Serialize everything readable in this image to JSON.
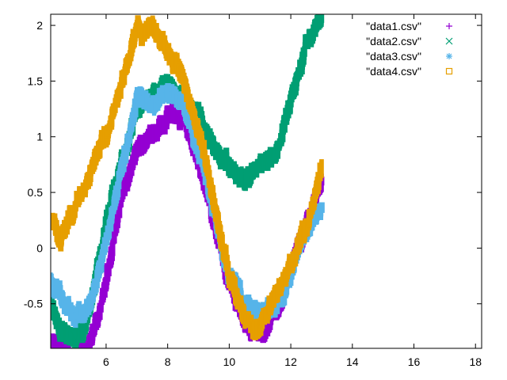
{
  "chart_data": {
    "type": "scatter",
    "title": "",
    "xlabel": "",
    "ylabel": "",
    "xlim": [
      4.2,
      18.2
    ],
    "ylim": [
      -0.9,
      2.1
    ],
    "x_ticks": [
      6,
      8,
      10,
      12,
      14,
      16,
      18
    ],
    "y_ticks": [
      -0.5,
      0,
      0.5,
      1,
      1.5,
      2
    ],
    "x_tick_labels": [
      "6",
      "8",
      "10",
      "12",
      "14",
      "16",
      "18"
    ],
    "y_tick_labels": [
      "-0.5",
      "0",
      "0.5",
      "1",
      "1.5",
      "2"
    ],
    "grid": false,
    "legend_position": "top-right",
    "series": [
      {
        "name": "\"data1.csv\"",
        "marker": "plus",
        "color": "#9400D3",
        "x": [
          4.2,
          4.5,
          5.0,
          5.5,
          6.0,
          6.5,
          7.0,
          7.5,
          8.0,
          8.5,
          9.0,
          9.5,
          10.0,
          10.5,
          11.0,
          11.5,
          12.0,
          12.5,
          13.0
        ],
        "y": [
          -0.87,
          -0.92,
          -0.95,
          -0.88,
          -0.3,
          0.45,
          0.85,
          1.05,
          1.2,
          1.15,
          0.8,
          0.25,
          -0.3,
          -0.65,
          -0.8,
          -0.6,
          -0.2,
          0.2,
          0.6
        ]
      },
      {
        "name": "\"data2.csv\"",
        "marker": "cross",
        "color": "#009E73",
        "x": [
          4.2,
          4.5,
          5.0,
          5.5,
          6.0,
          6.5,
          7.0,
          7.5,
          8.0,
          8.5,
          9.0,
          9.5,
          10.0,
          10.5,
          11.0,
          11.5,
          12.0,
          12.5,
          13.0
        ],
        "y": [
          -0.5,
          -0.7,
          -0.85,
          -0.55,
          0.2,
          0.75,
          1.2,
          1.4,
          1.45,
          1.35,
          1.25,
          0.9,
          0.7,
          0.6,
          0.75,
          0.85,
          1.3,
          1.8,
          2.1
        ]
      },
      {
        "name": "\"data3.csv\"",
        "marker": "star",
        "color": "#56B4E9",
        "x": [
          4.2,
          4.5,
          5.0,
          5.5,
          6.0,
          6.5,
          7.0,
          7.5,
          8.0,
          8.5,
          9.0,
          9.5,
          10.0,
          10.5,
          11.0,
          11.5,
          12.0,
          12.5,
          13.0
        ],
        "y": [
          -0.3,
          -0.4,
          -0.6,
          -0.5,
          0.0,
          0.75,
          1.35,
          1.3,
          1.42,
          1.3,
          0.9,
          0.35,
          -0.2,
          -0.5,
          -0.6,
          -0.5,
          -0.25,
          0.1,
          0.4
        ]
      },
      {
        "name": "\"data4.csv\"",
        "marker": "square",
        "color": "#E69F00",
        "x": [
          4.2,
          4.5,
          5.0,
          5.5,
          6.0,
          6.5,
          7.0,
          7.5,
          8.0,
          8.5,
          9.0,
          9.5,
          10.0,
          10.5,
          11.0,
          11.5,
          12.0,
          12.5,
          13.0
        ],
        "y": [
          0.25,
          0.1,
          0.35,
          0.75,
          1.05,
          1.5,
          1.95,
          2.0,
          1.8,
          1.55,
          1.05,
          0.45,
          -0.3,
          -0.6,
          -0.75,
          -0.45,
          -0.15,
          0.2,
          0.7
        ]
      }
    ]
  }
}
